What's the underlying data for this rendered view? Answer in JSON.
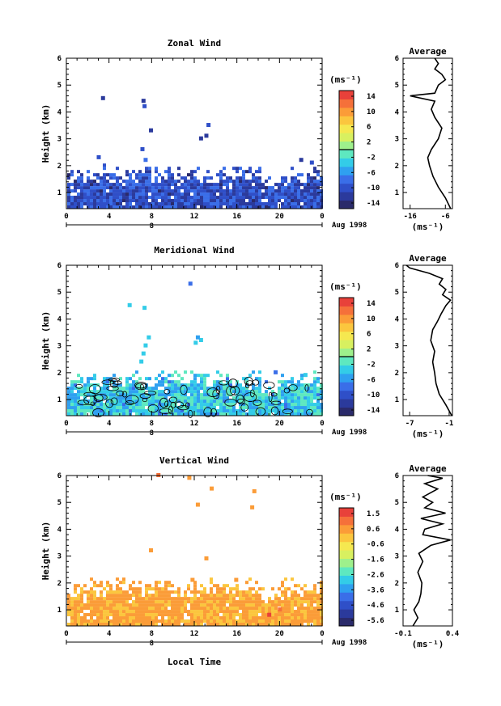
{
  "figure": {
    "xlabel_bottom": "Local Time"
  },
  "chart_data": [
    {
      "type": "heatmap",
      "title": "Zonal Wind",
      "ylabel": "Height (km)",
      "xlabel": "",
      "x_ticks": [
        "0",
        "4",
        "8",
        "12",
        "16",
        "20",
        "0"
      ],
      "x_range": [
        0,
        24
      ],
      "y_ticks": [
        "1",
        "2",
        "3",
        "4",
        "5",
        "6"
      ],
      "y_range": [
        0.4,
        6
      ],
      "date_bar_label": "8",
      "date_label": "Aug 1998",
      "colorbar": {
        "unit": "(ms⁻¹)",
        "labels": [
          "14",
          "10",
          "6",
          "2",
          "-2",
          "-6",
          "-10",
          "-14"
        ],
        "range": [
          -16,
          16
        ],
        "zero_line": 0
      },
      "fill": {
        "top_km": 1.8,
        "value": -10.5,
        "spread": 3.5,
        "seed": 11,
        "contour_fraction": 0.0,
        "patches": [
          {
            "t": 3.4,
            "h": 4.5,
            "v": -12
          },
          {
            "t": 7.2,
            "h": 4.4,
            "v": -12
          },
          {
            "t": 7.3,
            "h": 4.2,
            "v": -11
          },
          {
            "t": 13.3,
            "h": 3.5,
            "v": -11
          },
          {
            "t": 13.1,
            "h": 3.1,
            "v": -13
          },
          {
            "t": 12.6,
            "h": 3.0,
            "v": -12
          },
          {
            "t": 7.9,
            "h": 3.3,
            "v": -12
          },
          {
            "t": 7.1,
            "h": 2.6,
            "v": -10
          },
          {
            "t": 7.4,
            "h": 2.2,
            "v": -9
          },
          {
            "t": 3.0,
            "h": 2.3,
            "v": -10
          },
          {
            "t": 22.0,
            "h": 2.2,
            "v": -12
          },
          {
            "t": 23.0,
            "h": 2.1,
            "v": -11
          }
        ]
      },
      "average": {
        "title": "Average",
        "xlabel": "(ms⁻¹)",
        "x_ticks": [
          "-16",
          "-6"
        ],
        "x_ticks_values": [
          -16,
          -6
        ],
        "x_range": [
          -18,
          -4
        ],
        "y_ticks": [
          "1",
          "2",
          "3",
          "4",
          "5",
          "6"
        ],
        "profile": [
          {
            "h": 0.4,
            "v": -4.5
          },
          {
            "h": 0.8,
            "v": -6
          },
          {
            "h": 1.2,
            "v": -8
          },
          {
            "h": 1.6,
            "v": -9.5
          },
          {
            "h": 2.0,
            "v": -10.5
          },
          {
            "h": 2.3,
            "v": -11
          },
          {
            "h": 2.6,
            "v": -10
          },
          {
            "h": 3.0,
            "v": -8
          },
          {
            "h": 3.4,
            "v": -7
          },
          {
            "h": 3.8,
            "v": -9
          },
          {
            "h": 4.1,
            "v": -10
          },
          {
            "h": 4.4,
            "v": -9
          },
          {
            "h": 4.6,
            "v": -16
          },
          {
            "h": 4.7,
            "v": -9
          },
          {
            "h": 5.0,
            "v": -8
          },
          {
            "h": 5.2,
            "v": -6
          },
          {
            "h": 5.4,
            "v": -7
          },
          {
            "h": 5.6,
            "v": -9
          },
          {
            "h": 5.8,
            "v": -8
          },
          {
            "h": 6.0,
            "v": -9
          }
        ]
      }
    },
    {
      "type": "heatmap",
      "title": "Meridional Wind",
      "ylabel": "Height (km)",
      "xlabel": "",
      "x_ticks": [
        "0",
        "4",
        "8",
        "12",
        "16",
        "20",
        "0"
      ],
      "x_range": [
        0,
        24
      ],
      "y_ticks": [
        "1",
        "2",
        "3",
        "4",
        "5",
        "6"
      ],
      "y_range": [
        0.4,
        6
      ],
      "date_bar_label": "8",
      "date_label": "Aug 1998",
      "colorbar": {
        "unit": "(ms⁻¹)",
        "labels": [
          "14",
          "10",
          "6",
          "2",
          "-2",
          "-6",
          "-10",
          "-14"
        ],
        "range": [
          -16,
          16
        ],
        "zero_line": 0
      },
      "fill": {
        "top_km": 1.9,
        "value": -3.5,
        "spread": 3.5,
        "seed": 23,
        "contour_fraction": 0.35,
        "patches": [
          {
            "t": 5.9,
            "h": 4.5,
            "v": -4
          },
          {
            "t": 7.3,
            "h": 4.4,
            "v": -4
          },
          {
            "t": 11.6,
            "h": 5.3,
            "v": -8
          },
          {
            "t": 7.7,
            "h": 3.3,
            "v": -4
          },
          {
            "t": 7.4,
            "h": 3.0,
            "v": -3
          },
          {
            "t": 7.2,
            "h": 2.7,
            "v": -3
          },
          {
            "t": 7.0,
            "h": 2.4,
            "v": -3
          },
          {
            "t": 12.6,
            "h": 3.2,
            "v": -4
          },
          {
            "t": 12.1,
            "h": 3.1,
            "v": -4
          },
          {
            "t": 12.3,
            "h": 3.3,
            "v": -5
          },
          {
            "t": 19.6,
            "h": 2.0,
            "v": -8
          },
          {
            "t": 22.4,
            "h": 1.9,
            "v": -3
          }
        ]
      },
      "average": {
        "title": "Average",
        "xlabel": "(ms⁻¹)",
        "x_ticks": [
          "-7",
          "-1"
        ],
        "x_ticks_values": [
          -7,
          -1
        ],
        "x_range": [
          -8,
          -0.5
        ],
        "y_ticks": [
          "1",
          "2",
          "3",
          "4",
          "5",
          "6"
        ],
        "profile": [
          {
            "h": 0.4,
            "v": -0.6
          },
          {
            "h": 0.8,
            "v": -1.5
          },
          {
            "h": 1.2,
            "v": -2.5
          },
          {
            "h": 1.6,
            "v": -3
          },
          {
            "h": 2.0,
            "v": -3.2
          },
          {
            "h": 2.4,
            "v": -3.5
          },
          {
            "h": 2.8,
            "v": -3.2
          },
          {
            "h": 3.2,
            "v": -3.8
          },
          {
            "h": 3.6,
            "v": -3.5
          },
          {
            "h": 3.9,
            "v": -2.8
          },
          {
            "h": 4.2,
            "v": -2.2
          },
          {
            "h": 4.5,
            "v": -1.5
          },
          {
            "h": 4.7,
            "v": -0.8
          },
          {
            "h": 4.9,
            "v": -2
          },
          {
            "h": 5.1,
            "v": -1.5
          },
          {
            "h": 5.3,
            "v": -2.5
          },
          {
            "h": 5.5,
            "v": -2
          },
          {
            "h": 5.7,
            "v": -4
          },
          {
            "h": 5.9,
            "v": -7
          },
          {
            "h": 6.0,
            "v": -7.5
          }
        ]
      }
    },
    {
      "type": "heatmap",
      "title": "Vertical Wind",
      "ylabel": "Height (km)",
      "xlabel": "Local Time",
      "x_ticks": [
        "0",
        "4",
        "8",
        "12",
        "16",
        "20",
        "0"
      ],
      "x_range": [
        0,
        24
      ],
      "y_ticks": [
        "1",
        "2",
        "3",
        "4",
        "5",
        "6"
      ],
      "y_range": [
        0.4,
        6
      ],
      "date_bar_label": "8",
      "date_label": "Aug 1998",
      "colorbar": {
        "unit": "(ms⁻¹)",
        "labels": [
          "1.5",
          "0.6",
          "-0.6",
          "-1.6",
          "-2.6",
          "-3.6",
          "-4.6",
          "-5.6"
        ],
        "range": [
          -6.2,
          2.2
        ],
        "zero_line": null
      },
      "fill": {
        "top_km": 2.0,
        "value": 0.55,
        "spread": 0.45,
        "seed": 37,
        "contour_fraction": 0.0,
        "patches": [
          {
            "t": 8.6,
            "h": 6.0,
            "v": 1.2
          },
          {
            "t": 11.5,
            "h": 5.9,
            "v": 0.8
          },
          {
            "t": 13.6,
            "h": 5.5,
            "v": 0.6
          },
          {
            "t": 17.6,
            "h": 5.4,
            "v": 0.6
          },
          {
            "t": 17.4,
            "h": 4.8,
            "v": 0.6
          },
          {
            "t": 12.3,
            "h": 4.9,
            "v": 0.5
          },
          {
            "t": 7.9,
            "h": 3.2,
            "v": 0.6
          },
          {
            "t": 13.1,
            "h": 2.9,
            "v": 0.6
          },
          {
            "t": 11.8,
            "h": 2.1,
            "v": 0.5
          },
          {
            "t": 15.9,
            "h": 2.1,
            "v": 0.5
          },
          {
            "t": 19.0,
            "h": 0.8,
            "v": 1.6
          },
          {
            "t": 20.0,
            "h": 1.0,
            "v": 1.3
          }
        ]
      },
      "average": {
        "title": "Average",
        "xlabel": "(ms⁻¹)",
        "x_ticks": [
          "-0.1",
          "0.4"
        ],
        "x_ticks_values": [
          -0.1,
          0.4
        ],
        "x_range": [
          -0.1,
          0.4
        ],
        "y_ticks": [
          "1",
          "2",
          "3",
          "4",
          "5",
          "6"
        ],
        "profile": [
          {
            "h": 0.4,
            "v": 0.0
          },
          {
            "h": 0.7,
            "v": 0.05
          },
          {
            "h": 1.0,
            "v": 0.01
          },
          {
            "h": 1.3,
            "v": 0.06
          },
          {
            "h": 1.6,
            "v": 0.08
          },
          {
            "h": 2.0,
            "v": 0.09
          },
          {
            "h": 2.4,
            "v": 0.05
          },
          {
            "h": 2.8,
            "v": 0.1
          },
          {
            "h": 3.1,
            "v": 0.06
          },
          {
            "h": 3.4,
            "v": 0.18
          },
          {
            "h": 3.6,
            "v": 0.38
          },
          {
            "h": 3.8,
            "v": 0.1
          },
          {
            "h": 4.0,
            "v": 0.12
          },
          {
            "h": 4.2,
            "v": 0.3
          },
          {
            "h": 4.4,
            "v": 0.08
          },
          {
            "h": 4.6,
            "v": 0.33
          },
          {
            "h": 4.8,
            "v": 0.12
          },
          {
            "h": 5.0,
            "v": 0.2
          },
          {
            "h": 5.2,
            "v": 0.1
          },
          {
            "h": 5.5,
            "v": 0.25
          },
          {
            "h": 5.7,
            "v": 0.12
          },
          {
            "h": 5.9,
            "v": 0.3
          },
          {
            "h": 6.0,
            "v": 0.15
          }
        ]
      }
    }
  ]
}
